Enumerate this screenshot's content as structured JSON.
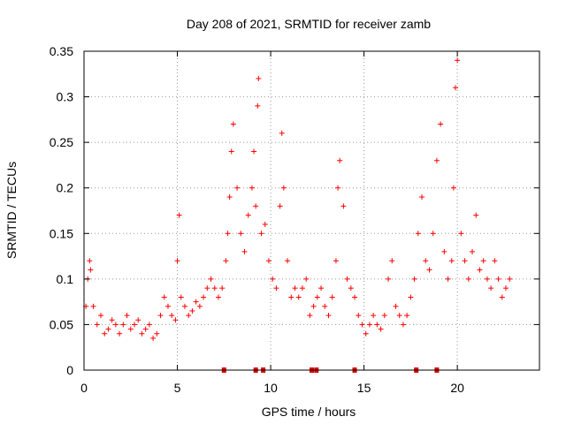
{
  "chart_data": {
    "type": "scatter",
    "title": "Day 208 of 2021, SRMTID for receiver zamb",
    "xlabel": "GPS time / hours",
    "ylabel": "SRMTID / TECUs",
    "xlim": [
      0,
      24.4
    ],
    "ylim": [
      0,
      0.35
    ],
    "xticks": [
      0,
      5,
      10,
      15,
      20
    ],
    "xtick_labels": [
      "0",
      "5",
      "10",
      "15",
      "20"
    ],
    "yticks": [
      0,
      0.05,
      0.1,
      0.15,
      0.2,
      0.25,
      0.3,
      0.35
    ],
    "ytick_labels": [
      "0",
      "0.05",
      "0.1",
      "0.15",
      "0.2",
      "0.25",
      "0.3",
      "0.35"
    ],
    "grid": true,
    "marker": "+",
    "color": "#ff0000",
    "gap_marker_color": "#dd0000",
    "gap_marks_x": [
      7.5,
      9.2,
      9.6,
      12.2,
      12.45,
      14.5,
      17.8,
      18.9
    ],
    "series": [
      {
        "name": "SRMTID",
        "x": [
          0.1,
          0.2,
          0.3,
          0.35,
          0.5,
          0.7,
          0.9,
          1.1,
          1.3,
          1.5,
          1.7,
          1.9,
          2.1,
          2.3,
          2.5,
          2.7,
          2.9,
          3.1,
          3.3,
          3.5,
          3.7,
          3.9,
          4.1,
          4.3,
          4.5,
          4.7,
          4.9,
          5.0,
          5.1,
          5.2,
          5.4,
          5.6,
          5.8,
          6.0,
          6.2,
          6.4,
          6.6,
          6.8,
          7.0,
          7.2,
          7.4,
          7.6,
          7.7,
          7.8,
          7.9,
          8.0,
          8.2,
          8.4,
          8.6,
          8.8,
          9.0,
          9.1,
          9.2,
          9.3,
          9.35,
          9.5,
          9.7,
          9.9,
          10.1,
          10.3,
          10.5,
          10.6,
          10.7,
          10.9,
          11.1,
          11.3,
          11.5,
          11.7,
          11.9,
          12.1,
          12.3,
          12.5,
          12.7,
          12.9,
          13.1,
          13.3,
          13.5,
          13.6,
          13.7,
          13.9,
          14.1,
          14.3,
          14.5,
          14.7,
          14.9,
          15.1,
          15.3,
          15.5,
          15.7,
          15.9,
          16.1,
          16.3,
          16.5,
          16.7,
          16.9,
          17.1,
          17.3,
          17.5,
          17.7,
          17.9,
          18.1,
          18.3,
          18.5,
          18.7,
          18.9,
          19.1,
          19.3,
          19.5,
          19.7,
          19.8,
          19.9,
          20.0,
          20.2,
          20.4,
          20.6,
          20.8,
          21.0,
          21.2,
          21.4,
          21.6,
          21.8,
          22.0,
          22.2,
          22.4,
          22.6,
          22.8
        ],
        "y": [
          0.07,
          0.1,
          0.12,
          0.11,
          0.07,
          0.05,
          0.06,
          0.04,
          0.045,
          0.055,
          0.05,
          0.04,
          0.05,
          0.06,
          0.045,
          0.05,
          0.055,
          0.04,
          0.045,
          0.05,
          0.035,
          0.04,
          0.06,
          0.08,
          0.07,
          0.06,
          0.055,
          0.12,
          0.17,
          0.08,
          0.07,
          0.06,
          0.065,
          0.075,
          0.07,
          0.08,
          0.09,
          0.1,
          0.09,
          0.08,
          0.09,
          0.12,
          0.15,
          0.19,
          0.24,
          0.27,
          0.2,
          0.15,
          0.13,
          0.17,
          0.2,
          0.24,
          0.18,
          0.29,
          0.32,
          0.15,
          0.16,
          0.12,
          0.1,
          0.09,
          0.18,
          0.26,
          0.2,
          0.12,
          0.08,
          0.09,
          0.08,
          0.09,
          0.1,
          0.06,
          0.07,
          0.08,
          0.09,
          0.07,
          0.06,
          0.08,
          0.12,
          0.2,
          0.23,
          0.18,
          0.1,
          0.09,
          0.08,
          0.06,
          0.05,
          0.04,
          0.05,
          0.06,
          0.05,
          0.045,
          0.06,
          0.1,
          0.12,
          0.07,
          0.06,
          0.05,
          0.06,
          0.08,
          0.1,
          0.15,
          0.19,
          0.12,
          0.11,
          0.15,
          0.23,
          0.27,
          0.13,
          0.1,
          0.12,
          0.2,
          0.31,
          0.34,
          0.15,
          0.12,
          0.1,
          0.13,
          0.17,
          0.11,
          0.12,
          0.1,
          0.09,
          0.12,
          0.1,
          0.08,
          0.09,
          0.1
        ]
      }
    ]
  }
}
